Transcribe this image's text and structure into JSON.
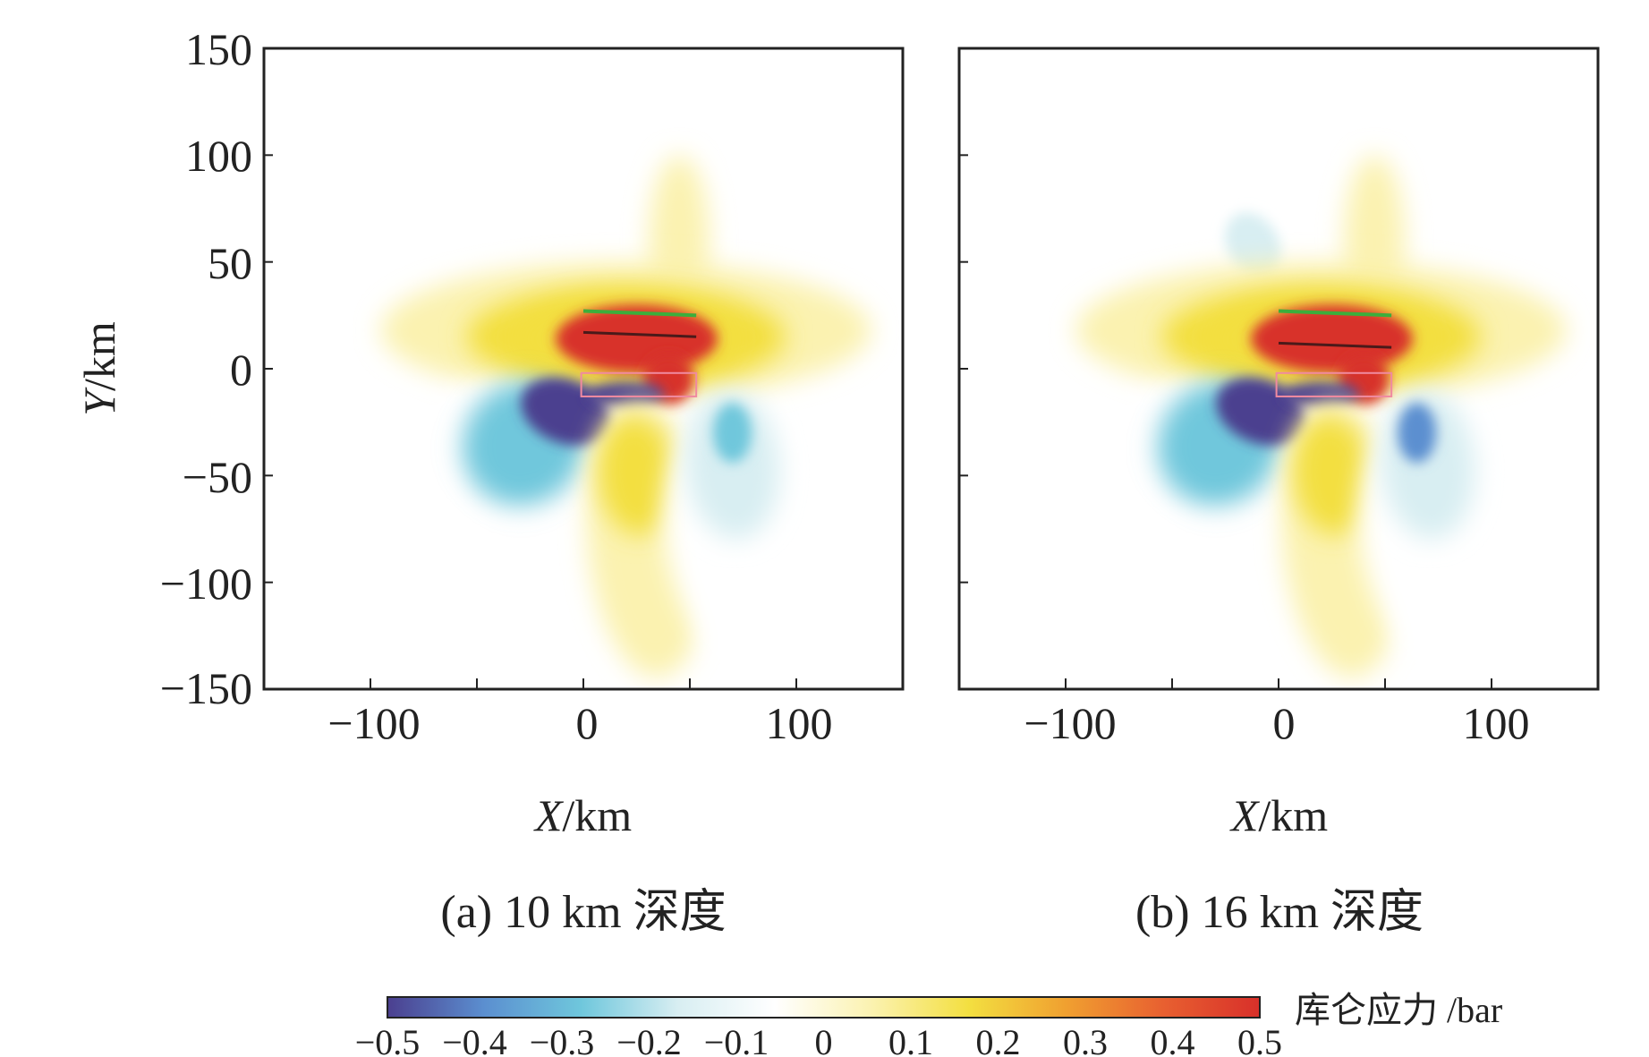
{
  "chart_data": [
    {
      "type": "heatmap",
      "panel": "a",
      "caption": "(a) 10 km 深度",
      "xlabel_var": "X",
      "xlabel_unit": "/km",
      "ylabel_var": "Y",
      "ylabel_unit": "/km",
      "xlim": [
        -150,
        150
      ],
      "ylim": [
        -150,
        150
      ],
      "xticks": [
        -100,
        0,
        100
      ],
      "xtick_labels": [
        "−100",
        "0",
        "100"
      ],
      "yticks": [
        150,
        100,
        50,
        0,
        -50,
        -100,
        -150
      ],
      "ytick_labels": [
        "150",
        "100",
        "50",
        "0",
        "−50",
        "−100",
        "−150"
      ],
      "features": "positive lobes N of fault (max red near x 0–50, y 0–25) and S-center lobe; negative lobes SW (strong, near x −10, y −20) and SE (x 70, y −30); weak negative N lobe (x −40, y 80)",
      "fault_lines": {
        "green": [
          [
            0,
            27
          ],
          [
            53,
            25
          ]
        ],
        "dark": [
          [
            0,
            17
          ],
          [
            53,
            15
          ]
        ],
        "rupture_box": [
          [
            -1,
            -2
          ],
          [
            53,
            -13
          ]
        ]
      }
    },
    {
      "type": "heatmap",
      "panel": "b",
      "caption": "(b) 16 km 深度",
      "xlabel_var": "X",
      "xlabel_unit": "/km",
      "xlim": [
        -150,
        150
      ],
      "ylim": [
        -150,
        150
      ],
      "xticks": [
        -100,
        0,
        100
      ],
      "xtick_labels": [
        "−100",
        "0",
        "100"
      ],
      "features": "similar pattern to (a), slightly stronger N negative lobe (x −10, y 50) and SE negative lobe",
      "fault_lines": {
        "green": [
          [
            0,
            27
          ],
          [
            53,
            25
          ]
        ],
        "dark": [
          [
            0,
            12
          ],
          [
            53,
            10
          ]
        ],
        "rupture_box": [
          [
            -1,
            -2
          ],
          [
            53,
            -13
          ]
        ]
      }
    }
  ],
  "colorbar": {
    "label": "库仑应力 /bar",
    "range": [
      -0.5,
      0.5
    ],
    "ticks": [
      -0.5,
      -0.4,
      -0.3,
      -0.2,
      -0.1,
      0,
      0.1,
      0.2,
      0.3,
      0.4,
      0.5
    ],
    "tick_labels": [
      "−0.5",
      "−0.4",
      "−0.3",
      "−0.2",
      "−0.1",
      "0",
      "0.1",
      "0.2",
      "0.3",
      "0.4",
      "0.5"
    ],
    "colors": [
      "#4b3f8f",
      "#5b8fd0",
      "#6fc7dc",
      "#d8eef2",
      "#ffffff",
      "#fbf2b0",
      "#f3df40",
      "#f0a030",
      "#e86030",
      "#d8302a"
    ]
  }
}
